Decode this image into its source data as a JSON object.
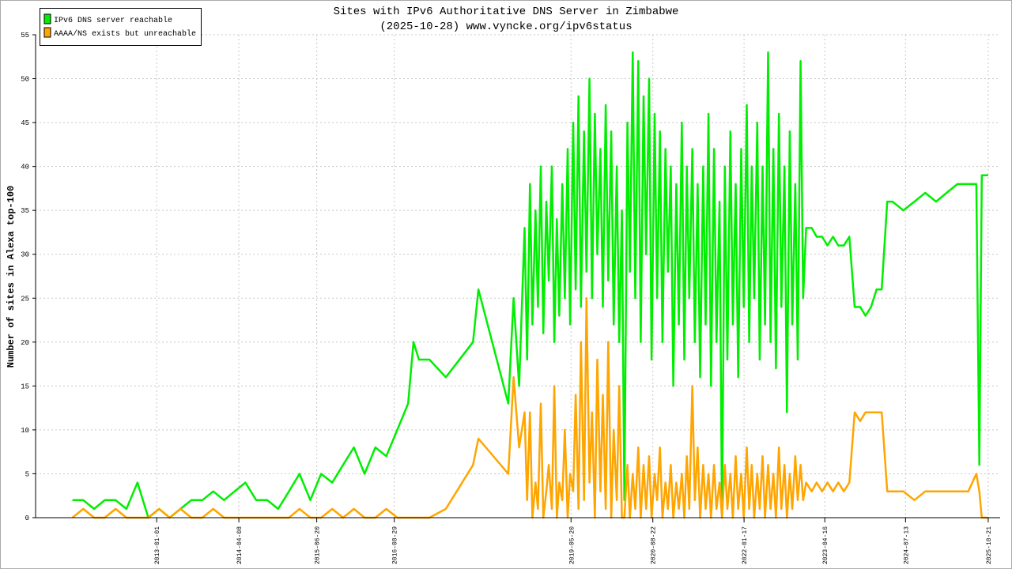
{
  "chart_data": {
    "type": "line",
    "title": "Sites with IPv6 Authoritative DNS Server in Zimbabwe",
    "subtitle": "(2025-10-28) www.vyncke.org/ipv6status",
    "y_label": "Number of sites in Alexa top-100",
    "legend": "top-left",
    "grid": true,
    "xlim": [
      "2011-02-20",
      "2025-12-27"
    ],
    "xticks": [
      "2013-01-01",
      "2014-04-08",
      "2015-06-20",
      "2016-08-29",
      "2019-05-20",
      "2020-08-22",
      "2022-01-17",
      "2023-04-16",
      "2024-07-13",
      "2025-10-21"
    ],
    "ylim": [
      0,
      55
    ],
    "yticks": [
      0,
      5,
      10,
      15,
      20,
      25,
      30,
      35,
      40,
      45,
      50,
      55
    ],
    "x": [
      "2011-09-15",
      "2011-11-15",
      "2012-01-15",
      "2012-03-15",
      "2012-05-15",
      "2012-07-15",
      "2012-09-15",
      "2012-11-15",
      "2013-01-15",
      "2013-03-15",
      "2013-05-15",
      "2013-07-15",
      "2013-09-15",
      "2013-11-15",
      "2014-01-15",
      "2014-03-15",
      "2014-05-15",
      "2014-07-15",
      "2014-09-15",
      "2014-11-15",
      "2015-01-15",
      "2015-03-15",
      "2015-05-15",
      "2015-07-15",
      "2015-09-15",
      "2015-11-15",
      "2016-01-15",
      "2016-03-15",
      "2016-05-15",
      "2016-07-15",
      "2016-09-15",
      "2016-11-15",
      "2016-12-15",
      "2017-01-15",
      "2017-03-15",
      "2017-06-15",
      "2017-11-15",
      "2017-12-15",
      "2018-06-01",
      "2018-07-01",
      "2018-08-01",
      "2018-09-01",
      "2018-09-15",
      "2018-10-01",
      "2018-10-15",
      "2018-11-01",
      "2018-11-15",
      "2018-12-01",
      "2018-12-15",
      "2019-01-01",
      "2019-01-15",
      "2019-02-01",
      "2019-02-15",
      "2019-03-01",
      "2019-03-15",
      "2019-04-01",
      "2019-04-15",
      "2019-05-01",
      "2019-05-15",
      "2019-06-01",
      "2019-06-15",
      "2019-07-01",
      "2019-07-15",
      "2019-08-01",
      "2019-08-15",
      "2019-09-01",
      "2019-09-15",
      "2019-10-01",
      "2019-10-15",
      "2019-11-01",
      "2019-11-15",
      "2019-12-01",
      "2019-12-15",
      "2020-01-01",
      "2020-01-15",
      "2020-02-01",
      "2020-02-15",
      "2020-03-01",
      "2020-03-15",
      "2020-04-01",
      "2020-04-15",
      "2020-05-01",
      "2020-05-15",
      "2020-06-01",
      "2020-06-15",
      "2020-07-01",
      "2020-07-15",
      "2020-08-01",
      "2020-08-15",
      "2020-09-01",
      "2020-09-15",
      "2020-10-01",
      "2020-10-15",
      "2020-11-01",
      "2020-11-15",
      "2020-12-01",
      "2020-12-15",
      "2021-01-01",
      "2021-01-15",
      "2021-02-01",
      "2021-02-15",
      "2021-03-01",
      "2021-03-15",
      "2021-04-01",
      "2021-04-15",
      "2021-05-01",
      "2021-05-15",
      "2021-06-01",
      "2021-06-15",
      "2021-07-01",
      "2021-07-15",
      "2021-08-01",
      "2021-08-15",
      "2021-09-01",
      "2021-09-15",
      "2021-10-01",
      "2021-10-15",
      "2021-11-01",
      "2021-11-15",
      "2021-12-01",
      "2021-12-15",
      "2022-01-01",
      "2022-01-15",
      "2022-02-01",
      "2022-02-15",
      "2022-03-01",
      "2022-03-15",
      "2022-04-01",
      "2022-04-15",
      "2022-05-01",
      "2022-05-15",
      "2022-06-01",
      "2022-06-15",
      "2022-07-01",
      "2022-07-15",
      "2022-08-01",
      "2022-08-15",
      "2022-09-01",
      "2022-09-15",
      "2022-10-01",
      "2022-10-15",
      "2022-11-01",
      "2022-11-15",
      "2022-12-01",
      "2022-12-15",
      "2023-01-01",
      "2023-02-01",
      "2023-03-01",
      "2023-04-01",
      "2023-05-01",
      "2023-06-01",
      "2023-07-01",
      "2023-08-01",
      "2023-09-01",
      "2023-10-01",
      "2023-11-01",
      "2023-12-01",
      "2024-01-01",
      "2024-02-01",
      "2024-03-01",
      "2024-04-01",
      "2024-05-01",
      "2024-07-01",
      "2024-09-01",
      "2024-11-01",
      "2025-01-01",
      "2025-03-01",
      "2025-05-01",
      "2025-07-01",
      "2025-08-15",
      "2025-09-01",
      "2025-09-15",
      "2025-10-21"
    ],
    "series": [
      {
        "name": "IPv6 DNS server reachable",
        "color": "#00ee00",
        "values": [
          2,
          2,
          1,
          2,
          2,
          1,
          4,
          0,
          1,
          0,
          1,
          2,
          2,
          3,
          2,
          3,
          4,
          2,
          2,
          1,
          3,
          5,
          2,
          5,
          4,
          6,
          8,
          5,
          8,
          7,
          10,
          13,
          20,
          18,
          18,
          16,
          20,
          26,
          13,
          25,
          15,
          33,
          18,
          38,
          22,
          35,
          24,
          40,
          21,
          36,
          27,
          40,
          20,
          34,
          23,
          38,
          25,
          42,
          22,
          45,
          26,
          48,
          24,
          44,
          28,
          50,
          25,
          46,
          30,
          42,
          24,
          47,
          27,
          44,
          22,
          40,
          20,
          35,
          2,
          45,
          28,
          53,
          25,
          52,
          20,
          48,
          30,
          50,
          18,
          46,
          25,
          44,
          20,
          42,
          28,
          40,
          15,
          38,
          22,
          45,
          18,
          40,
          25,
          42,
          20,
          38,
          16,
          40,
          22,
          46,
          15,
          42,
          20,
          36,
          0,
          40,
          18,
          44,
          22,
          38,
          16,
          42,
          24,
          47,
          20,
          40,
          25,
          45,
          18,
          40,
          22,
          53,
          20,
          42,
          17,
          46,
          24,
          40,
          12,
          44,
          22,
          38,
          18,
          52,
          25,
          33,
          33,
          32,
          32,
          31,
          32,
          31,
          31,
          32,
          24,
          24,
          23,
          24,
          26,
          26,
          36,
          36,
          35,
          36,
          37,
          36,
          37,
          38,
          38,
          38,
          6,
          39,
          39
        ]
      },
      {
        "name": "AAAA/NS exists but unreachable",
        "color": "#ffa500",
        "values": [
          0,
          1,
          0,
          0,
          1,
          0,
          0,
          0,
          1,
          0,
          1,
          0,
          0,
          1,
          0,
          0,
          0,
          0,
          0,
          0,
          0,
          1,
          0,
          0,
          1,
          0,
          1,
          0,
          0,
          1,
          0,
          0,
          0,
          0,
          0,
          1,
          6,
          9,
          5,
          16,
          8,
          12,
          2,
          12,
          0,
          4,
          1,
          13,
          0,
          3,
          6,
          1,
          15,
          0,
          4,
          2,
          10,
          0,
          5,
          3,
          14,
          1,
          20,
          2,
          25,
          4,
          12,
          0,
          18,
          3,
          14,
          1,
          20,
          0,
          10,
          2,
          15,
          0,
          0,
          6,
          0,
          5,
          1,
          8,
          0,
          6,
          1,
          7,
          0,
          5,
          2,
          8,
          0,
          4,
          1,
          6,
          0,
          4,
          1,
          5,
          0,
          7,
          1,
          15,
          2,
          8,
          0,
          6,
          1,
          5,
          0,
          6,
          1,
          4,
          0,
          6,
          1,
          5,
          0,
          7,
          1,
          5,
          0,
          8,
          1,
          6,
          0,
          5,
          1,
          7,
          0,
          6,
          1,
          5,
          0,
          8,
          1,
          6,
          0,
          5,
          1,
          7,
          2,
          6,
          2,
          4,
          3,
          4,
          3,
          4,
          3,
          4,
          3,
          4,
          12,
          11,
          12,
          12,
          12,
          12,
          3,
          3,
          3,
          2,
          3,
          3,
          3,
          3,
          3,
          5,
          3,
          0,
          0
        ]
      }
    ]
  }
}
